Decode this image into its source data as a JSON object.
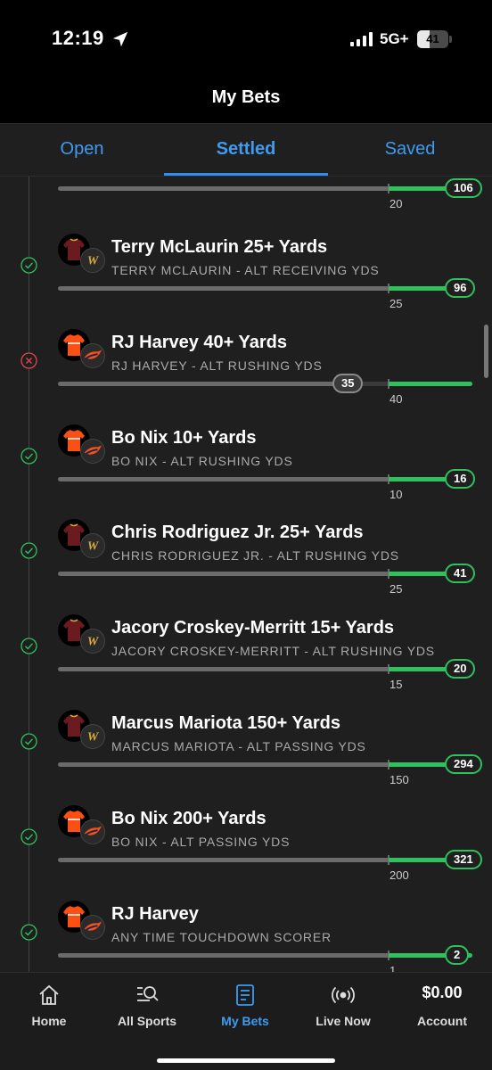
{
  "status_bar": {
    "time": "12:19",
    "network": "5G+",
    "battery": "41",
    "battery_level": 41
  },
  "header": {
    "title": "My Bets"
  },
  "tabs": [
    {
      "label": "Open",
      "active": false
    },
    {
      "label": "Settled",
      "active": true
    },
    {
      "label": "Saved",
      "active": false
    }
  ],
  "colors": {
    "accent": "#2f8ff0",
    "win": "#2fc15d",
    "loss": "#e0464b",
    "commanders": "#6b1a1f",
    "broncos": "#fb4f14"
  },
  "partial_top": {
    "line": "20",
    "result": "106"
  },
  "bets": [
    {
      "title": "Terry McLaurin 25+ Yards",
      "subtitle": "TERRY MCLAURIN - ALT RECEIVING YDS",
      "line": "25",
      "result": "96",
      "outcome": "win",
      "team": "commanders",
      "team_logo_icon": "commanders-w-icon"
    },
    {
      "title": "RJ Harvey 40+ Yards",
      "subtitle": "RJ HARVEY - ALT RUSHING YDS",
      "line": "40",
      "result": "35",
      "outcome": "loss",
      "team": "broncos",
      "team_logo_icon": "broncos-horse-icon"
    },
    {
      "title": "Bo Nix 10+ Yards",
      "subtitle": "BO NIX - ALT RUSHING YDS",
      "line": "10",
      "result": "16",
      "outcome": "win",
      "team": "broncos",
      "team_logo_icon": "broncos-horse-icon"
    },
    {
      "title": "Chris Rodriguez Jr. 25+ Yards",
      "subtitle": "CHRIS RODRIGUEZ JR. - ALT RUSHING YDS",
      "line": "25",
      "result": "41",
      "outcome": "win",
      "team": "commanders",
      "team_logo_icon": "commanders-w-icon"
    },
    {
      "title": "Jacory Croskey-Merritt 15+ Yards",
      "subtitle": "JACORY CROSKEY-MERRITT - ALT RUSHING YDS",
      "line": "15",
      "result": "20",
      "outcome": "win",
      "team": "commanders",
      "team_logo_icon": "commanders-w-icon"
    },
    {
      "title": "Marcus Mariota 150+ Yards",
      "subtitle": "MARCUS MARIOTA - ALT PASSING YDS",
      "line": "150",
      "result": "294",
      "outcome": "win",
      "team": "commanders",
      "team_logo_icon": "commanders-w-icon"
    },
    {
      "title": "Bo Nix 200+ Yards",
      "subtitle": "BO NIX - ALT PASSING YDS",
      "line": "200",
      "result": "321",
      "outcome": "win",
      "team": "broncos",
      "team_logo_icon": "broncos-horse-icon"
    },
    {
      "title": "RJ Harvey",
      "subtitle": "ANY TIME TOUCHDOWN SCORER",
      "line": "1",
      "result": "2",
      "outcome": "win",
      "team": "broncos",
      "team_logo_icon": "broncos-horse-icon"
    }
  ],
  "bottom_nav": [
    {
      "label": "Home",
      "icon": "home-icon",
      "active": false
    },
    {
      "label": "All Sports",
      "icon": "search-list-icon",
      "active": false
    },
    {
      "label": "My Bets",
      "icon": "bet-slip-icon",
      "active": true
    },
    {
      "label": "Live Now",
      "icon": "live-broadcast-icon",
      "active": false
    },
    {
      "label": "Account",
      "balance": "$0.00",
      "active": false
    }
  ]
}
